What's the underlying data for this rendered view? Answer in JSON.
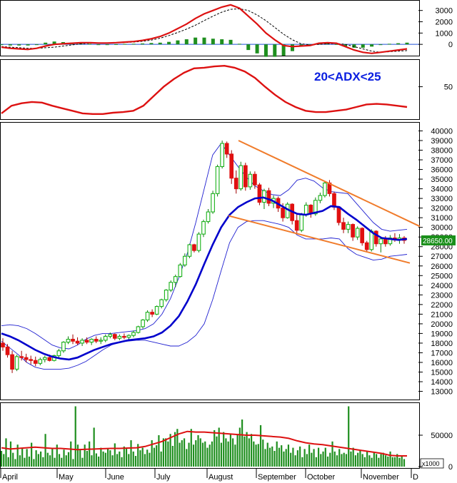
{
  "colors": {
    "bull": "#19b219",
    "bear": "#e01010",
    "bb_ma": "#0000cc",
    "bb_band": "#1f1fd0",
    "trend": "#f07b2a",
    "volume": "#1f8f1f",
    "red_line": "#dd1111",
    "current_bg": "#1a8f1a"
  },
  "chart_data": [
    {
      "id": "macd",
      "type": "line",
      "ylim": [
        -1000,
        3800
      ],
      "yticks": [
        "3000",
        "2000",
        "1000",
        "0"
      ],
      "series": [
        {
          "role": "macd",
          "values": [
            -250,
            -350,
            -400,
            -450,
            -350,
            -150,
            0,
            50,
            100,
            150,
            150,
            120,
            120,
            150,
            200,
            250,
            350,
            500,
            700,
            1000,
            1400,
            1800,
            2300,
            2700,
            3000,
            3300,
            3500,
            3200,
            2500,
            1800,
            1000,
            400,
            -100,
            -200,
            -150,
            -100,
            100,
            150,
            100,
            -200,
            -500,
            -700,
            -800,
            -700,
            -600,
            -500,
            -400
          ]
        },
        {
          "role": "signal",
          "values": [
            -200,
            -250,
            -300,
            -350,
            -350,
            -300,
            -250,
            -150,
            -50,
            50,
            100,
            120,
            130,
            140,
            160,
            200,
            270,
            380,
            550,
            780,
            1050,
            1350,
            1700,
            2100,
            2500,
            2850,
            3100,
            3150,
            3000,
            2600,
            2100,
            1500,
            900,
            400,
            50,
            -50,
            0,
            50,
            80,
            0,
            -200,
            -400,
            -600,
            -700,
            -650,
            -600,
            -550
          ]
        },
        {
          "role": "histogram",
          "values": [
            -50,
            -100,
            -100,
            -100,
            0,
            150,
            250,
            200,
            150,
            100,
            50,
            0,
            -10,
            10,
            40,
            50,
            80,
            120,
            150,
            220,
            350,
            450,
            600,
            600,
            500,
            450,
            400,
            50,
            -500,
            -800,
            -1100,
            -1100,
            -1000,
            -600,
            -200,
            -50,
            100,
            100,
            20,
            -200,
            -300,
            -300,
            -200,
            0,
            50,
            100,
            150
          ]
        }
      ]
    },
    {
      "id": "adx",
      "type": "line",
      "ylim": [
        0,
        90
      ],
      "yticks": [
        "50"
      ],
      "annotation": "20<ADX<25",
      "series": [
        {
          "role": "adx",
          "values": [
            8,
            20,
            24,
            26,
            25,
            20,
            16,
            12,
            8,
            7,
            7,
            9,
            10,
            12,
            20,
            35,
            50,
            62,
            72,
            79,
            80,
            82,
            83,
            80,
            74,
            64,
            50,
            37,
            26,
            18,
            12,
            10,
            10,
            12,
            14,
            18,
            22,
            23,
            22,
            20,
            18
          ]
        }
      ]
    },
    {
      "id": "price",
      "type": "candlestick",
      "ylim": [
        12300,
        40700
      ],
      "yticks": [
        "40000",
        "39000",
        "38000",
        "37000",
        "36000",
        "35000",
        "34000",
        "33000",
        "32000",
        "31000",
        "30000",
        "29000",
        "28000",
        "27000",
        "26000",
        "25000",
        "24000",
        "23000",
        "22000",
        "21000",
        "20000",
        "19000",
        "18000",
        "17000",
        "16000",
        "15000",
        "14000",
        "13000"
      ],
      "current_price": "28650.00",
      "candles": [
        [
          18000,
          18500,
          17200,
          17600
        ],
        [
          17600,
          17900,
          16500,
          16800
        ],
        [
          16800,
          17200,
          14900,
          15300
        ],
        [
          15300,
          16800,
          15100,
          16600
        ],
        [
          16600,
          17200,
          16200,
          16500
        ],
        [
          16500,
          16900,
          16000,
          16300
        ],
        [
          16300,
          16700,
          15800,
          16200
        ],
        [
          16200,
          16600,
          15600,
          15900
        ],
        [
          15900,
          16500,
          15700,
          16300
        ],
        [
          16300,
          16700,
          16000,
          16500
        ],
        [
          16500,
          16800,
          16100,
          16200
        ],
        [
          16200,
          16800,
          16100,
          16700
        ],
        [
          16700,
          17400,
          16500,
          17200
        ],
        [
          17200,
          18200,
          17000,
          18100
        ],
        [
          18100,
          18700,
          17900,
          18400
        ],
        [
          18400,
          18900,
          17900,
          18200
        ],
        [
          18200,
          18600,
          17800,
          18000
        ],
        [
          18000,
          18500,
          17700,
          18300
        ],
        [
          18300,
          18600,
          17900,
          18100
        ],
        [
          18100,
          18500,
          17800,
          18400
        ],
        [
          18400,
          18700,
          18000,
          18200
        ],
        [
          18200,
          18600,
          17900,
          18300
        ],
        [
          18300,
          18900,
          18100,
          18700
        ],
        [
          18700,
          19100,
          18500,
          18900
        ],
        [
          18900,
          19000,
          18300,
          18500
        ],
        [
          18500,
          18900,
          18300,
          18700
        ],
        [
          18700,
          19000,
          18400,
          18600
        ],
        [
          18600,
          18900,
          18300,
          18800
        ],
        [
          18800,
          19300,
          18600,
          19100
        ],
        [
          19100,
          19800,
          19000,
          19700
        ],
        [
          19700,
          20500,
          19500,
          20400
        ],
        [
          20400,
          21400,
          20200,
          21200
        ],
        [
          21200,
          21500,
          20700,
          21000
        ],
        [
          21000,
          21900,
          20900,
          21800
        ],
        [
          21800,
          22600,
          21600,
          22500
        ],
        [
          22500,
          23600,
          22300,
          23500
        ],
        [
          23500,
          24500,
          23300,
          24300
        ],
        [
          24300,
          25100,
          23800,
          24900
        ],
        [
          24900,
          26300,
          24800,
          26100
        ],
        [
          26100,
          27300,
          25900,
          27000
        ],
        [
          27000,
          28300,
          26800,
          28200
        ],
        [
          28200,
          28300,
          27400,
          27600
        ],
        [
          27600,
          29500,
          27400,
          29300
        ],
        [
          29300,
          30800,
          29000,
          30600
        ],
        [
          30600,
          31900,
          30400,
          31600
        ],
        [
          31600,
          33800,
          31400,
          33500
        ],
        [
          33500,
          36500,
          33200,
          36300
        ],
        [
          36300,
          39000,
          36100,
          38700
        ],
        [
          38700,
          38900,
          37200,
          37600
        ],
        [
          37600,
          38000,
          34500,
          35100
        ],
        [
          35100,
          35900,
          33500,
          34000
        ],
        [
          34000,
          36800,
          33800,
          36400
        ],
        [
          36400,
          36700,
          33800,
          34200
        ],
        [
          34200,
          35800,
          33900,
          35500
        ],
        [
          35500,
          35800,
          34000,
          34400
        ],
        [
          34400,
          34600,
          32300,
          32600
        ],
        [
          32600,
          34000,
          31900,
          33800
        ],
        [
          33800,
          34100,
          32200,
          32500
        ],
        [
          32500,
          33300,
          32000,
          33000
        ],
        [
          33000,
          33200,
          31600,
          32000
        ],
        [
          32000,
          32500,
          30600,
          31000
        ],
        [
          31000,
          32600,
          30900,
          32400
        ],
        [
          32400,
          32500,
          30300,
          30700
        ],
        [
          30700,
          31400,
          29300,
          29700
        ],
        [
          29700,
          31500,
          29500,
          31300
        ],
        [
          31300,
          32600,
          31100,
          32300
        ],
        [
          32300,
          32400,
          31000,
          31400
        ],
        [
          31400,
          33100,
          31200,
          32800
        ],
        [
          32800,
          33600,
          32500,
          33300
        ],
        [
          33300,
          34800,
          33100,
          34600
        ],
        [
          34600,
          34900,
          33200,
          33500
        ],
        [
          33500,
          33700,
          31800,
          32100
        ],
        [
          32100,
          32200,
          30200,
          30500
        ],
        [
          30500,
          31000,
          29400,
          29800
        ],
        [
          29800,
          30600,
          29400,
          30300
        ],
        [
          30300,
          30400,
          28600,
          29000
        ],
        [
          29000,
          30100,
          28700,
          29900
        ],
        [
          29900,
          30000,
          28100,
          28400
        ],
        [
          28400,
          28600,
          27400,
          27700
        ],
        [
          27700,
          29800,
          27500,
          29600
        ],
        [
          29600,
          29700,
          28000,
          28300
        ],
        [
          28300,
          29000,
          27400,
          28800
        ],
        [
          28800,
          29100,
          28000,
          28300
        ],
        [
          28300,
          29200,
          28100,
          28900
        ],
        [
          28900,
          29400,
          28500,
          28700
        ],
        [
          28700,
          29300,
          28300,
          28900
        ],
        [
          28900,
          29100,
          28300,
          28650
        ]
      ],
      "bb_mid": [
        19000,
        18700,
        18300,
        17800,
        17300,
        16900,
        16600,
        16400,
        16300,
        16500,
        16900,
        17300,
        17600,
        17900,
        18100,
        18300,
        18400,
        18500,
        18700,
        19100,
        19800,
        20800,
        22300,
        24100,
        26200,
        28200,
        30000,
        31300,
        32100,
        32600,
        33000,
        33100,
        32800,
        32300,
        31800,
        31400,
        31300,
        31500,
        31700,
        32200,
        32100,
        31400,
        30800,
        30100,
        29400,
        28900,
        28800,
        28700,
        28800
      ],
      "bb_upper": [
        19800,
        19900,
        19800,
        19500,
        19000,
        18400,
        17800,
        17500,
        17400,
        17800,
        18400,
        18800,
        19000,
        19000,
        19100,
        19200,
        19300,
        19500,
        20000,
        21000,
        22600,
        24800,
        27300,
        30500,
        34000,
        37500,
        38700,
        37500,
        36300,
        35200,
        34300,
        33800,
        33400,
        33300,
        33900,
        34900,
        35100,
        34800,
        34100,
        33700,
        33600,
        33500,
        32500,
        31500,
        30500,
        29800,
        29600,
        29700,
        29800
      ],
      "bb_lower": [
        18200,
        17500,
        16800,
        16000,
        15500,
        15300,
        15300,
        15300,
        15400,
        15700,
        16100,
        16700,
        17300,
        17800,
        18100,
        18200,
        18300,
        18300,
        18100,
        17900,
        17700,
        17700,
        18100,
        18800,
        20000,
        22500,
        25500,
        28400,
        30000,
        30600,
        30700,
        30700,
        30500,
        30300,
        30000,
        29200,
        28800,
        28800,
        28800,
        28900,
        28800,
        27800,
        27200,
        26900,
        26600,
        26700,
        27000,
        27100,
        27200
      ],
      "trend_upper": [
        39000,
        30100
      ],
      "trend_lower": [
        31200,
        26300
      ]
    },
    {
      "id": "volume",
      "type": "bar",
      "ylim": [
        0,
        100000
      ],
      "yticks": [
        "50000",
        "0"
      ],
      "unit_label": "x1000",
      "values": [
        25000,
        20000,
        45000,
        15000,
        40000,
        22000,
        12000,
        35000,
        18000,
        30000,
        14000,
        28000,
        16000,
        38000,
        12000,
        26000,
        20000,
        24000,
        15000,
        52000,
        22000,
        18000,
        30000,
        14000,
        35000,
        20000,
        14000,
        27000,
        18000,
        23000,
        40000,
        12000,
        96000,
        35000,
        28000,
        14000,
        35000,
        25000,
        40000,
        18000,
        62000,
        21000,
        16000,
        30000,
        24000,
        22000,
        28000,
        26000,
        18000,
        37000,
        20000,
        24000,
        15000,
        32000,
        30000,
        20000,
        42000,
        24000,
        17000,
        36000,
        26000,
        30000,
        20000,
        27000,
        22000,
        42000,
        30000,
        34000,
        50000,
        24000,
        45000,
        45000,
        40000,
        52000,
        33000,
        55000,
        60000,
        38000,
        42000,
        45000,
        28000,
        38000,
        60000,
        35000,
        42000,
        50000,
        45000,
        38000,
        40000,
        30000,
        35000,
        40000,
        58000,
        48000,
        62000,
        38000,
        55000,
        45000,
        40000,
        52000,
        45000,
        35000,
        52000,
        62000,
        75000,
        48000,
        55000,
        45000,
        52000,
        40000,
        35000,
        36000,
        66000,
        43000,
        28000,
        38000,
        30000,
        32000,
        25000,
        40000,
        30000,
        34000,
        24000,
        28000,
        35000,
        22000,
        30000,
        18000,
        26000,
        32000,
        15000,
        28000,
        20000,
        35000,
        22000,
        28000,
        15000,
        30000,
        20000,
        24000,
        30000,
        16000,
        22000,
        40000,
        24000,
        18000,
        28000,
        20000,
        22000,
        20000,
        96000,
        24000,
        30000,
        18000,
        22000,
        26000,
        20000,
        15000,
        24000,
        18000,
        14000,
        22000,
        20000,
        14000,
        20000,
        22000,
        18000,
        16000,
        24000,
        15000,
        15000,
        20000,
        14000,
        16000,
        12000
      ],
      "avg": [
        30000,
        28000,
        29000,
        30000,
        31000,
        30000,
        29000,
        29000,
        28000,
        27000,
        27500,
        28000,
        28500,
        29000,
        29000,
        29500,
        30000,
        32000,
        36000,
        40000,
        46000,
        52000,
        56000,
        55000,
        55000,
        54000,
        53000,
        52000,
        51000,
        50000,
        50000,
        49000,
        48000,
        47000,
        45000,
        41000,
        38000,
        36000,
        35000,
        33000,
        31000,
        29000,
        27000,
        25000,
        23000,
        21000,
        18000,
        17000,
        17000
      ]
    }
  ],
  "x_axis": {
    "labels": [
      "April",
      "May",
      "June",
      "July",
      "August",
      "September",
      "October",
      "November",
      "D"
    ]
  }
}
